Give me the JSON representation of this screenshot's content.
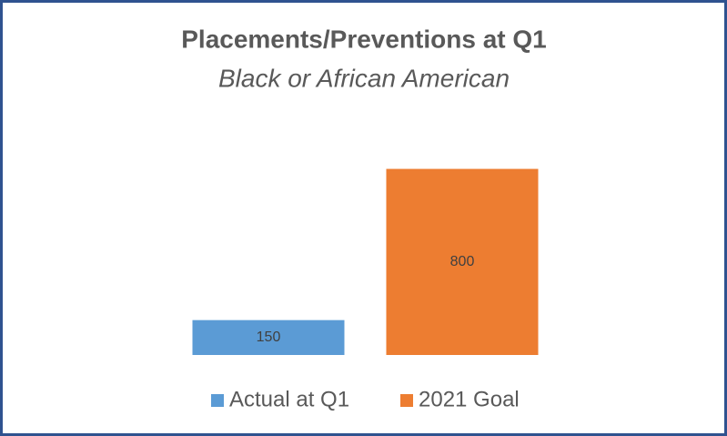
{
  "chart_data": {
    "type": "bar",
    "title": "Placements/Preventions at Q1",
    "subtitle": "Black or African American",
    "categories": [
      null
    ],
    "series": [
      {
        "name": "Actual at Q1",
        "color": "#5b9bd5",
        "values": [
          150
        ]
      },
      {
        "name": "2021 Goal",
        "color": "#ed7d31",
        "values": [
          800
        ]
      }
    ],
    "ylim": [
      0,
      900
    ],
    "legend": "bottom"
  }
}
